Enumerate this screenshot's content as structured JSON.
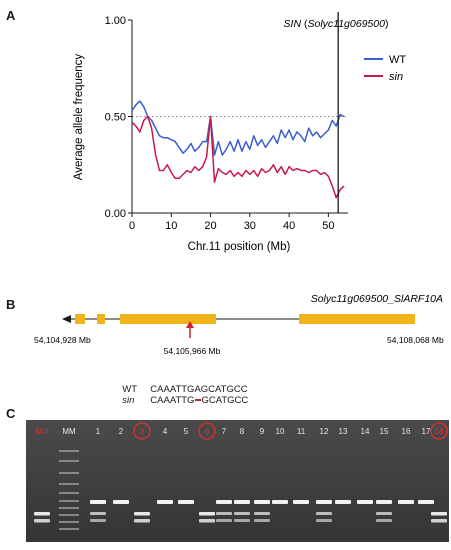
{
  "panels": {
    "a": "A",
    "b": "B",
    "c": "C"
  },
  "chart_data": {
    "type": "line",
    "xlabel": "Chr.11 position (Mb)",
    "ylabel": "Average allele frequency",
    "xlim": [
      0,
      55
    ],
    "ylim": [
      0,
      1
    ],
    "xticks": [
      "0",
      "10",
      "20",
      "30",
      "40",
      "50"
    ],
    "yticks": [
      "0.00",
      "0.50",
      "1.00"
    ],
    "reference_line": {
      "y": 0.5,
      "style": "dotted"
    },
    "marker_line": {
      "x": 52.5,
      "label_gene": "SIN",
      "label_id": "Solyc11g069500"
    },
    "legend_position": "top-right",
    "series": [
      {
        "name": "WT",
        "color": "#3a5fcd",
        "x": [
          0,
          1,
          2,
          3,
          4,
          5,
          6,
          7,
          8,
          9,
          10,
          11,
          12,
          13,
          14,
          15,
          16,
          17,
          18,
          19,
          20,
          21,
          22,
          23,
          24,
          25,
          26,
          27,
          28,
          29,
          30,
          31,
          32,
          33,
          34,
          35,
          36,
          37,
          38,
          39,
          40,
          41,
          42,
          43,
          44,
          45,
          46,
          47,
          48,
          49,
          50,
          51,
          52,
          53,
          54
        ],
        "values": [
          0.53,
          0.56,
          0.58,
          0.55,
          0.5,
          0.48,
          0.44,
          0.4,
          0.39,
          0.39,
          0.38,
          0.37,
          0.34,
          0.31,
          0.33,
          0.36,
          0.32,
          0.34,
          0.37,
          0.37,
          0.5,
          0.3,
          0.37,
          0.3,
          0.33,
          0.37,
          0.32,
          0.38,
          0.32,
          0.37,
          0.33,
          0.4,
          0.35,
          0.38,
          0.34,
          0.37,
          0.4,
          0.36,
          0.43,
          0.39,
          0.43,
          0.38,
          0.42,
          0.4,
          0.37,
          0.44,
          0.4,
          0.42,
          0.39,
          0.41,
          0.43,
          0.48,
          0.45,
          0.51,
          0.5
        ]
      },
      {
        "name": "sin",
        "color": "#c8184a",
        "x": [
          0,
          1,
          2,
          3,
          4,
          5,
          6,
          7,
          8,
          9,
          10,
          11,
          12,
          13,
          14,
          15,
          16,
          17,
          18,
          19,
          20,
          21,
          22,
          23,
          24,
          25,
          26,
          27,
          28,
          29,
          30,
          31,
          32,
          33,
          34,
          35,
          36,
          37,
          38,
          39,
          40,
          41,
          42,
          43,
          44,
          45,
          46,
          47,
          48,
          49,
          50,
          51,
          52,
          53,
          54
        ],
        "values": [
          0.47,
          0.45,
          0.42,
          0.48,
          0.5,
          0.44,
          0.3,
          0.22,
          0.22,
          0.25,
          0.21,
          0.18,
          0.18,
          0.2,
          0.22,
          0.21,
          0.24,
          0.22,
          0.24,
          0.29,
          0.5,
          0.16,
          0.23,
          0.21,
          0.2,
          0.22,
          0.19,
          0.21,
          0.19,
          0.22,
          0.2,
          0.22,
          0.19,
          0.23,
          0.21,
          0.22,
          0.25,
          0.21,
          0.24,
          0.2,
          0.24,
          0.22,
          0.23,
          0.22,
          0.22,
          0.21,
          0.22,
          0.22,
          0.2,
          0.21,
          0.19,
          0.14,
          0.08,
          0.12,
          0.14
        ]
      }
    ]
  },
  "gene_model": {
    "title_italic": "Solyc11g069500_SlARF10A",
    "left_coord": "54,104,928 Mb",
    "right_coord": "54,108,068 Mb",
    "mutation_coord": "54,105,966 Mb",
    "exon_color": "#f0b41a"
  },
  "sequence": {
    "wt_label": "WT",
    "wt_seq": "CAAATTGAGCATGCC",
    "sin_label": "sin",
    "sin_seq_before": "CAAATTG",
    "sin_seq_after": "GCATGCC"
  },
  "gel": {
    "lane_labels": [
      "Mut",
      "MM",
      "1",
      "2",
      "3",
      "4",
      "5",
      "6",
      "7",
      "8",
      "9",
      "10",
      "11",
      "12",
      "13",
      "14",
      "15",
      "16",
      "17",
      "18"
    ],
    "circled_lanes": [
      "3",
      "6",
      "18"
    ],
    "highlight_color": "#e03030"
  }
}
